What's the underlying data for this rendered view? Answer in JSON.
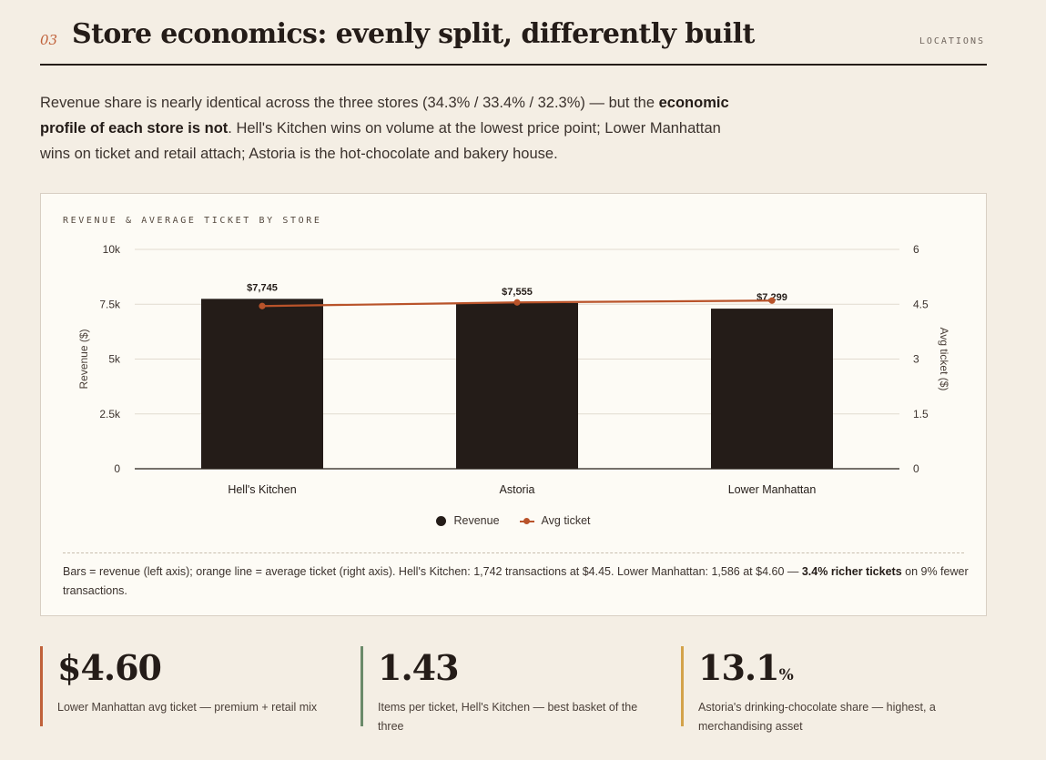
{
  "section": {
    "number": "03",
    "title": "Store economics: evenly split, differently built",
    "tag": "LOCATIONS"
  },
  "intro": {
    "part1": "Revenue share is nearly identical across the three stores (34.3% / 33.4% / 32.3%) — but the ",
    "bold": "economic profile of each store is not",
    "part2": ". Hell's Kitchen wins on volume at the lowest price point; Lower Manhattan wins on ticket and retail attach; Astoria is the hot-chocolate and bakery house."
  },
  "card": {
    "label": "REVENUE & AVERAGE TICKET BY STORE",
    "legend": {
      "bar": "Revenue",
      "line": "Avg ticket"
    },
    "note": {
      "part1": "Bars = revenue (left axis); orange line = average ticket (right axis). Hell's Kitchen: 1,742 transactions at $4.45. Lower Manhattan: 1,586 at $4.60 — ",
      "bold": "3.4% richer tickets",
      "part2": " on 9% fewer transactions."
    }
  },
  "colors": {
    "bar": "#241c18",
    "line": "#b9532a",
    "grid": "#e2dbd0",
    "accent_red": "#c0613a",
    "accent_green": "#6b8a6a",
    "accent_gold": "#d3a24a"
  },
  "chart_data": {
    "type": "bar",
    "categories": [
      "Hell's Kitchen",
      "Astoria",
      "Lower Manhattan"
    ],
    "series": [
      {
        "name": "Revenue",
        "axis": "left",
        "values": [
          7745,
          7555,
          7299
        ],
        "data_labels": [
          "$7,745",
          "$7,555",
          "$7,299"
        ]
      },
      {
        "name": "Avg ticket",
        "type": "line",
        "axis": "right",
        "values": [
          4.45,
          4.55,
          4.6
        ]
      }
    ],
    "ylabel": "Revenue ($)",
    "y2label": "Avg ticket ($)",
    "ylim": [
      0,
      10000
    ],
    "y2lim": [
      0,
      6
    ],
    "yticks": [
      "0",
      "2.5k",
      "5k",
      "7.5k",
      "10k"
    ],
    "y2ticks": [
      "0",
      "1.5",
      "3",
      "4.5",
      "6"
    ],
    "grid": true,
    "legend": "bottom-center"
  },
  "stats": [
    {
      "value": "$4.60",
      "unit": "",
      "text": "Lower Manhattan avg ticket — premium + retail mix"
    },
    {
      "value": "1.43",
      "unit": "",
      "text": "Items per ticket, Hell's Kitchen — best basket of the three"
    },
    {
      "value": "13.1",
      "unit": "%",
      "text": "Astoria's drinking-chocolate share — highest, a merchandising asset"
    }
  ]
}
